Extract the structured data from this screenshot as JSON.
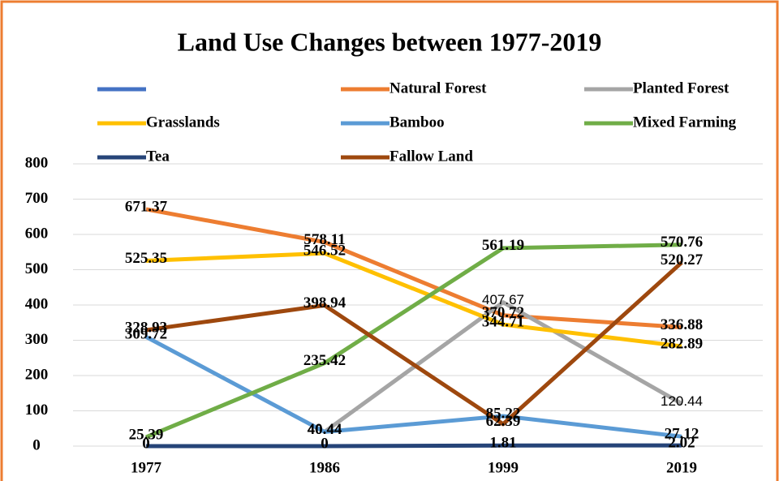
{
  "chart_data": {
    "type": "line",
    "title": "Land Use Changes between 1977-2019",
    "categories": [
      "1977",
      "1986",
      "1999",
      "2019"
    ],
    "series": [
      {
        "name": "Natural Forest",
        "color": "#ED7D31",
        "values": [
          671.37,
          578.11,
          370.72,
          336.88
        ]
      },
      {
        "name": "Planted Forest",
        "color": "#A5A5A5",
        "values": [
          null,
          40.44,
          407.67,
          120.44
        ]
      },
      {
        "name": "Grasslands",
        "color": "#FFC000",
        "values": [
          525.35,
          546.52,
          344.71,
          282.89
        ]
      },
      {
        "name": "Bamboo",
        "color": "#5B9BD5",
        "values": [
          309.72,
          40.44,
          85.22,
          27.12
        ]
      },
      {
        "name": "Mixed Farming",
        "color": "#70AD47",
        "values": [
          25.39,
          235.42,
          561.19,
          570.76
        ]
      },
      {
        "name": "Tea",
        "color": "#264478",
        "values": [
          0,
          0,
          1.81,
          2.02
        ]
      },
      {
        "name": "Fallow Land",
        "color": "#9E480E",
        "values": [
          328.93,
          398.94,
          62.39,
          520.27
        ]
      }
    ],
    "ylim": [
      0,
      800
    ],
    "yticks": [
      0,
      100,
      200,
      300,
      400,
      500,
      600,
      700,
      800
    ],
    "grid": true
  }
}
